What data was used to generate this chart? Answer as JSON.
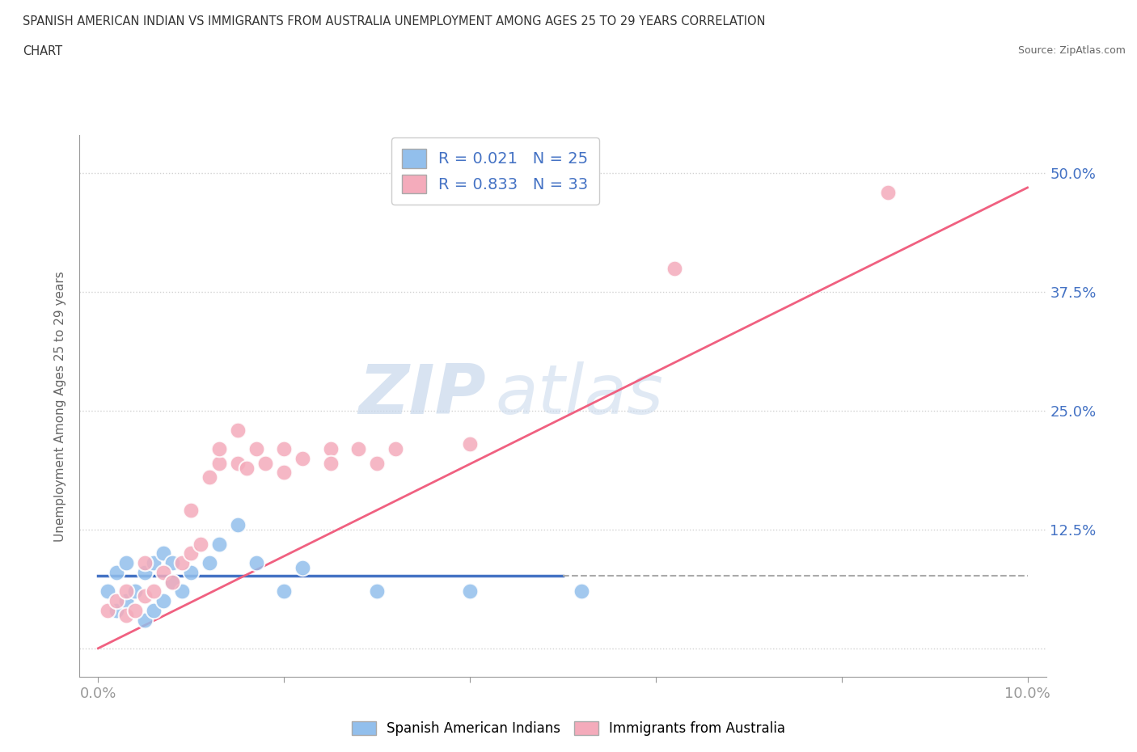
{
  "title_line1": "SPANISH AMERICAN INDIAN VS IMMIGRANTS FROM AUSTRALIA UNEMPLOYMENT AMONG AGES 25 TO 29 YEARS CORRELATION",
  "title_line2": "CHART",
  "source": "Source: ZipAtlas.com",
  "ylabel": "Unemployment Among Ages 25 to 29 years",
  "xlim": [
    -0.002,
    0.102
  ],
  "ylim": [
    -0.03,
    0.54
  ],
  "xticks": [
    0.0,
    0.02,
    0.04,
    0.06,
    0.08,
    0.1
  ],
  "xticklabels": [
    "0.0%",
    "",
    "",
    "",
    "",
    "10.0%"
  ],
  "yticks": [
    0.0,
    0.125,
    0.25,
    0.375,
    0.5
  ],
  "yticklabels": [
    "",
    "12.5%",
    "25.0%",
    "37.5%",
    "50.0%"
  ],
  "blue_color": "#92BFEC",
  "pink_color": "#F4ABBB",
  "blue_line_color": "#4472C4",
  "pink_line_color": "#F06080",
  "R_blue": 0.021,
  "N_blue": 25,
  "R_pink": 0.833,
  "N_pink": 33,
  "legend_label_blue": "Spanish American Indians",
  "legend_label_pink": "Immigrants from Australia",
  "watermark_zip": "ZIP",
  "watermark_atlas": "atlas",
  "blue_scatter_x": [
    0.001,
    0.002,
    0.002,
    0.003,
    0.003,
    0.004,
    0.005,
    0.005,
    0.006,
    0.006,
    0.007,
    0.007,
    0.008,
    0.008,
    0.009,
    0.01,
    0.012,
    0.013,
    0.015,
    0.017,
    0.02,
    0.022,
    0.03,
    0.04,
    0.052
  ],
  "blue_scatter_y": [
    0.06,
    0.04,
    0.08,
    0.05,
    0.09,
    0.06,
    0.03,
    0.08,
    0.04,
    0.09,
    0.05,
    0.1,
    0.07,
    0.09,
    0.06,
    0.08,
    0.09,
    0.11,
    0.13,
    0.09,
    0.06,
    0.085,
    0.06,
    0.06,
    0.06
  ],
  "pink_scatter_x": [
    0.001,
    0.002,
    0.003,
    0.003,
    0.004,
    0.005,
    0.005,
    0.006,
    0.007,
    0.008,
    0.009,
    0.01,
    0.011,
    0.012,
    0.013,
    0.015,
    0.016,
    0.017,
    0.018,
    0.02,
    0.02,
    0.022,
    0.025,
    0.025,
    0.028,
    0.03,
    0.032,
    0.04,
    0.015,
    0.01,
    0.013,
    0.085,
    0.062
  ],
  "pink_scatter_y": [
    0.04,
    0.05,
    0.06,
    0.035,
    0.04,
    0.055,
    0.09,
    0.06,
    0.08,
    0.07,
    0.09,
    0.1,
    0.11,
    0.18,
    0.195,
    0.195,
    0.19,
    0.21,
    0.195,
    0.21,
    0.185,
    0.2,
    0.21,
    0.195,
    0.21,
    0.195,
    0.21,
    0.215,
    0.23,
    0.145,
    0.21,
    0.48,
    0.4
  ],
  "background_color": "#FFFFFF",
  "grid_color": "#CCCCCC",
  "title_color": "#333333",
  "axis_label_color": "#666666",
  "tick_color": "#4472C4",
  "blue_trend_y_at_0": 0.076,
  "blue_trend_y_at_10": 0.076,
  "pink_trend_y_at_0": 0.0,
  "pink_trend_y_at_10": 0.485
}
